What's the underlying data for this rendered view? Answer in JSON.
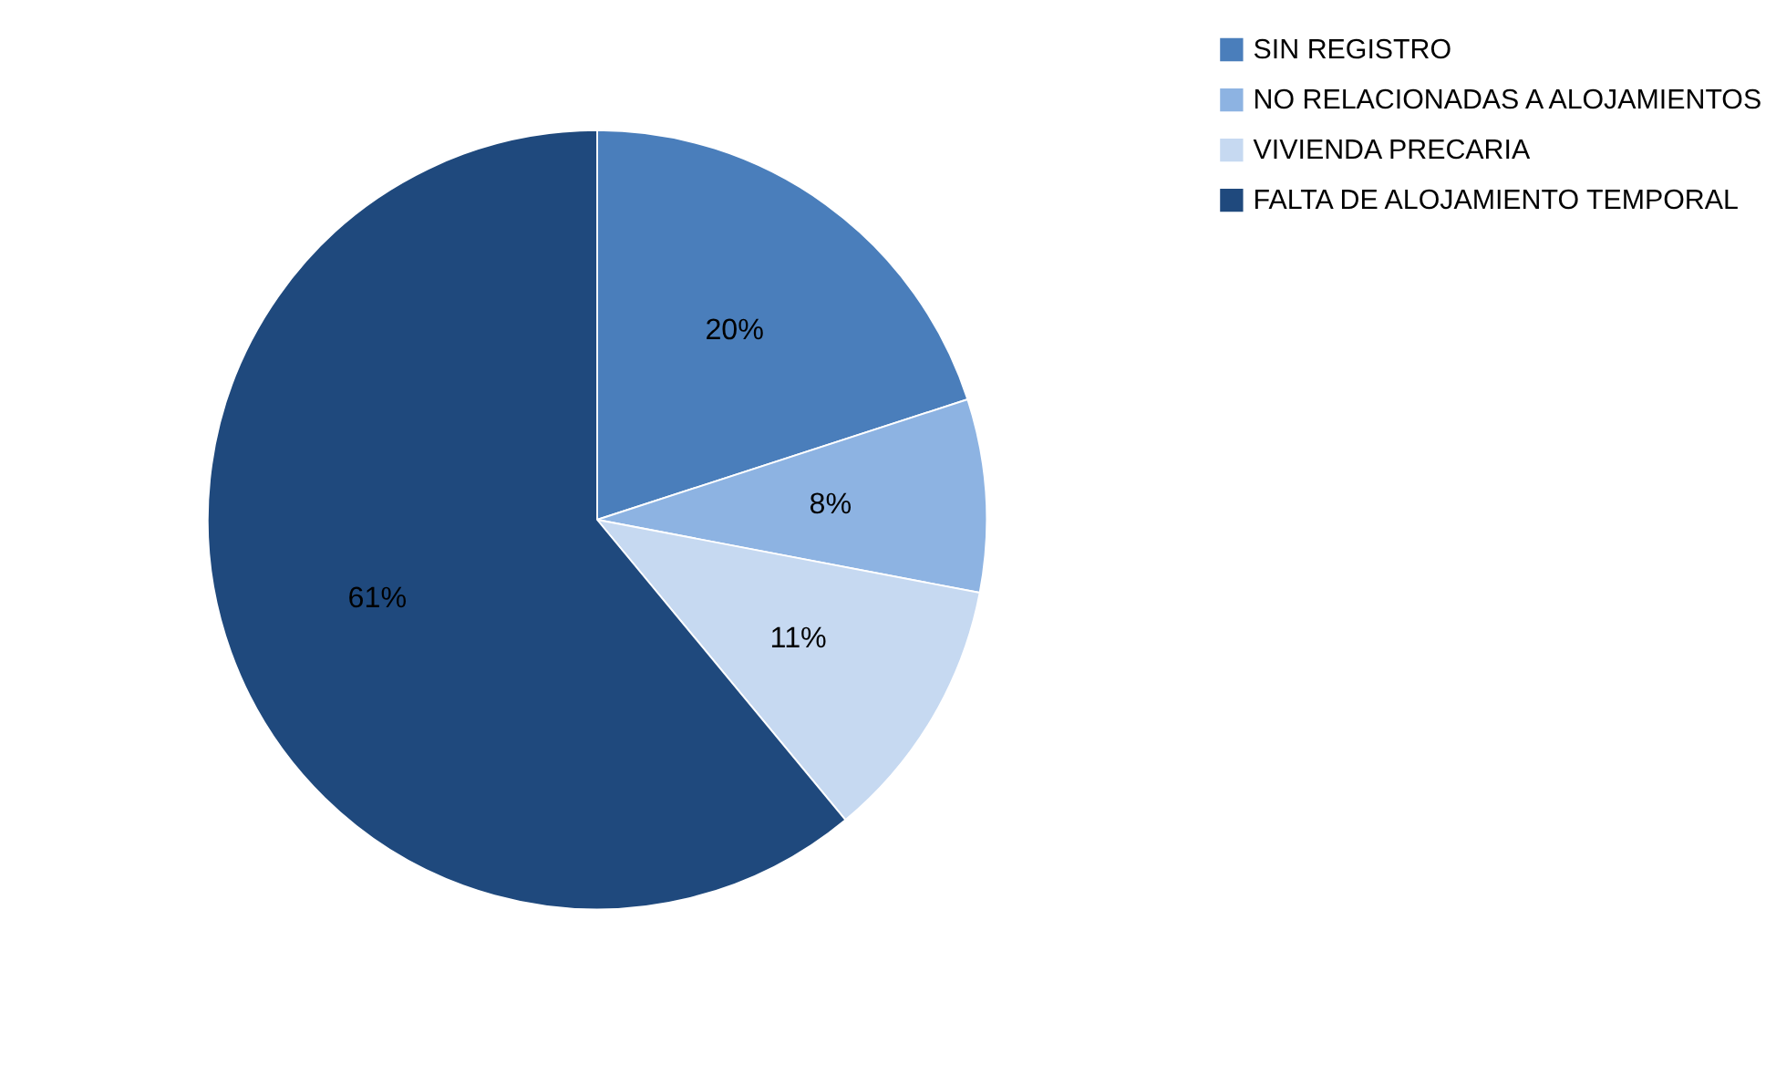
{
  "chart_data": {
    "type": "pie",
    "categories": [
      "SIN REGISTRO",
      "NO RELACIONADAS A ALOJAMIENTOS",
      "VIVIENDA PRECARIA",
      "FALTA DE ALOJAMIENTO TEMPORAL"
    ],
    "values": [
      20,
      8,
      11,
      61
    ],
    "colors": [
      "#4a7ebb",
      "#8db3e2",
      "#c6d9f1",
      "#1f497d"
    ],
    "value_labels": [
      "20%",
      "8%",
      "11%",
      "61%"
    ],
    "legend": "right"
  }
}
